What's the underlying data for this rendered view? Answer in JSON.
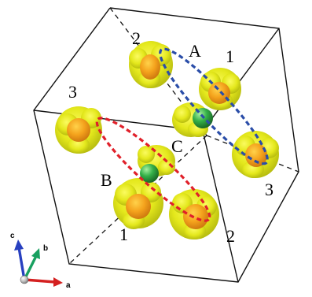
{
  "labels": {
    "A": "A",
    "B": "B",
    "C": "C",
    "n1_top": "1",
    "n2_top": "2",
    "n3_left": "3",
    "n3_right": "3",
    "n1_bottom": "1",
    "n2_bottom": "2"
  },
  "axes": {
    "a": "a",
    "b": "b",
    "c": "c"
  },
  "colors": {
    "box_line": "#111111",
    "blob_outer": "#e6ea16",
    "blob_inner": "#f2a01a",
    "metal_atom": "#2fa043",
    "ellipse_A": "#2a4da8",
    "ellipse_B": "#e0202a",
    "axis_a": "#d42020",
    "axis_b": "#18a060",
    "axis_c": "#2840c0"
  }
}
